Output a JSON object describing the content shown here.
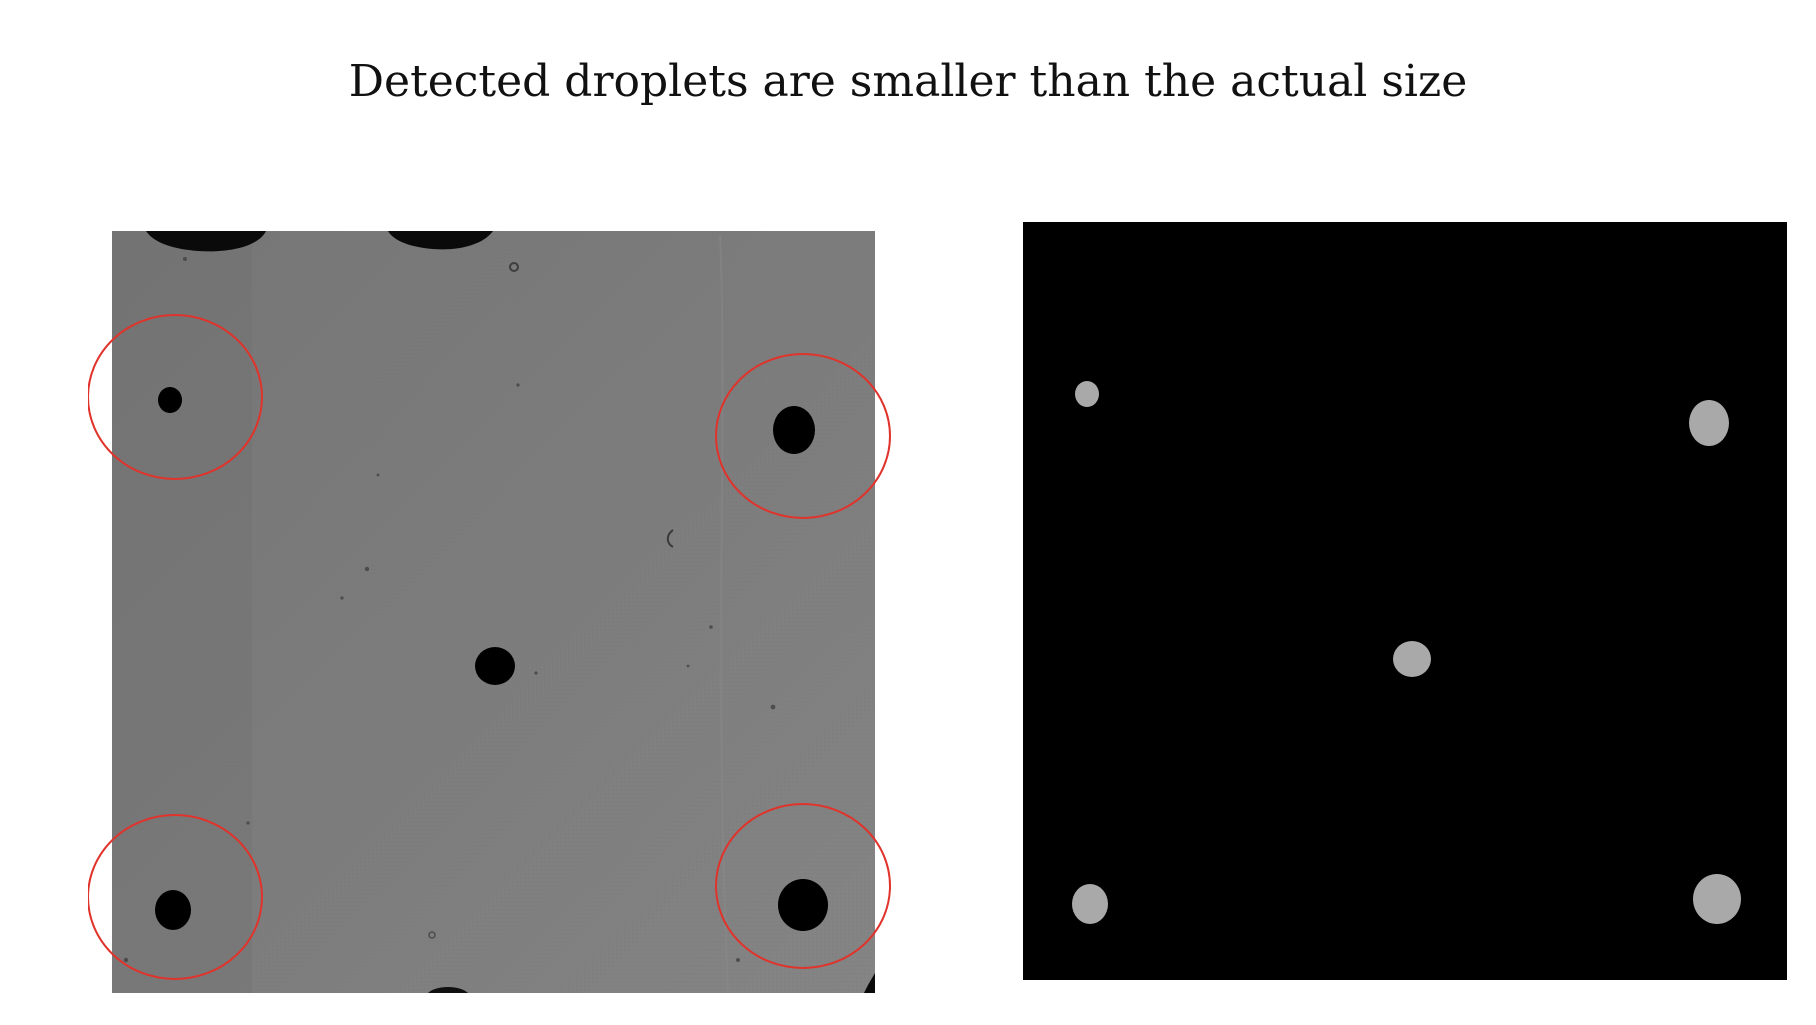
{
  "title": "Detected droplets are smaller than the actual size",
  "colors": {
    "annotation_circle": "#e0332b",
    "droplet_raw": "#000000",
    "raw_background": "#7a7a7a",
    "mask_background": "#000000",
    "mask_droplet": "#a9a9a9"
  },
  "panels": {
    "left": {
      "name": "raw-microscope-image",
      "annotated_droplets": 4,
      "total_droplets": 5
    },
    "right": {
      "name": "detection-mask",
      "detected_droplets": 5
    }
  }
}
